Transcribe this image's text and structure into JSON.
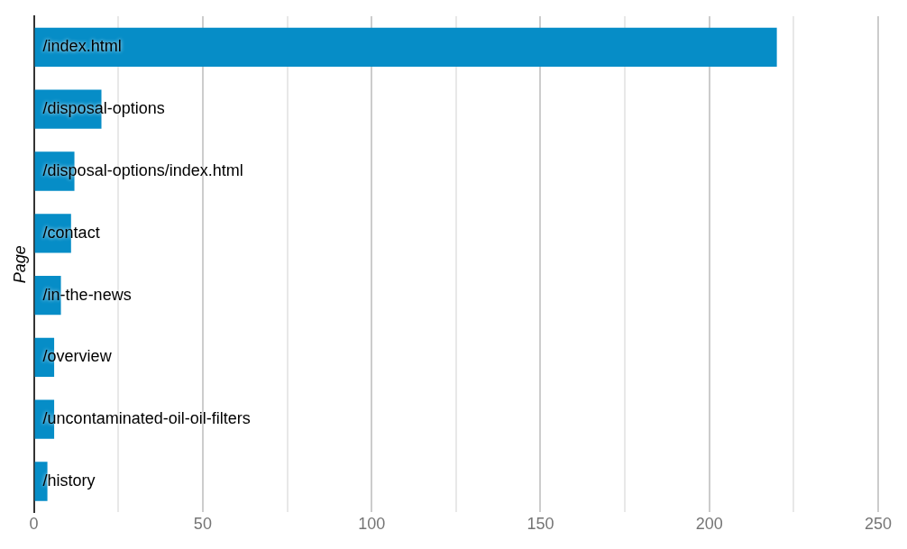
{
  "chart_data": {
    "type": "bar",
    "orientation": "horizontal",
    "ylabel": "Page",
    "categories": [
      "/index.html",
      "/disposal-options",
      "/disposal-options/index.html",
      "/contact",
      "/in-the-news",
      "/overview",
      "/uncontaminated-oil-oil-filters",
      "/history"
    ],
    "values": [
      220,
      20,
      12,
      11,
      8,
      6,
      6,
      4
    ],
    "color": "#068dc7",
    "xlim": [
      0,
      250
    ],
    "xticks": [
      0,
      {
        "value": 25,
        "label": null
      },
      50,
      {
        "value": 75,
        "label": null
      },
      100,
      {
        "value": 125,
        "label": null
      },
      150,
      {
        "value": 175,
        "label": null
      },
      200,
      {
        "value": 225,
        "label": null
      },
      250
    ],
    "grid": "x"
  }
}
